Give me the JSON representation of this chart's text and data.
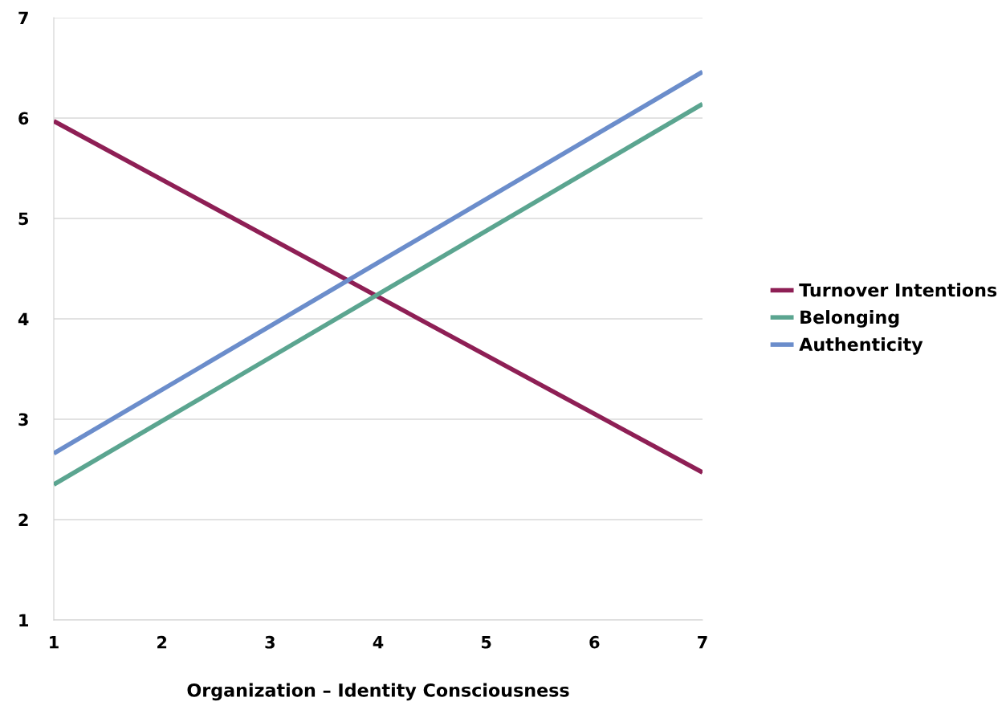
{
  "chart_data": {
    "type": "line",
    "xlabel": "Organization – Identity Consciousness",
    "x": [
      1,
      7
    ],
    "series": [
      {
        "name": "Turnover Intentions",
        "color": "#8e1f55",
        "values": [
          5.97,
          2.47
        ]
      },
      {
        "name": "Belonging",
        "color": "#5ba590",
        "values": [
          2.35,
          6.14
        ]
      },
      {
        "name": "Authenticity",
        "color": "#6b8dcb",
        "values": [
          2.66,
          6.46
        ]
      }
    ],
    "xlim": [
      1,
      7
    ],
    "xticks": [
      1,
      2,
      3,
      4,
      5,
      6,
      7
    ],
    "ylim": [
      1,
      7
    ],
    "yticks": [
      1,
      2,
      3,
      4,
      5,
      6,
      7
    ],
    "grid": "y",
    "legend": "right",
    "marker": "none",
    "line_style": "solid"
  }
}
